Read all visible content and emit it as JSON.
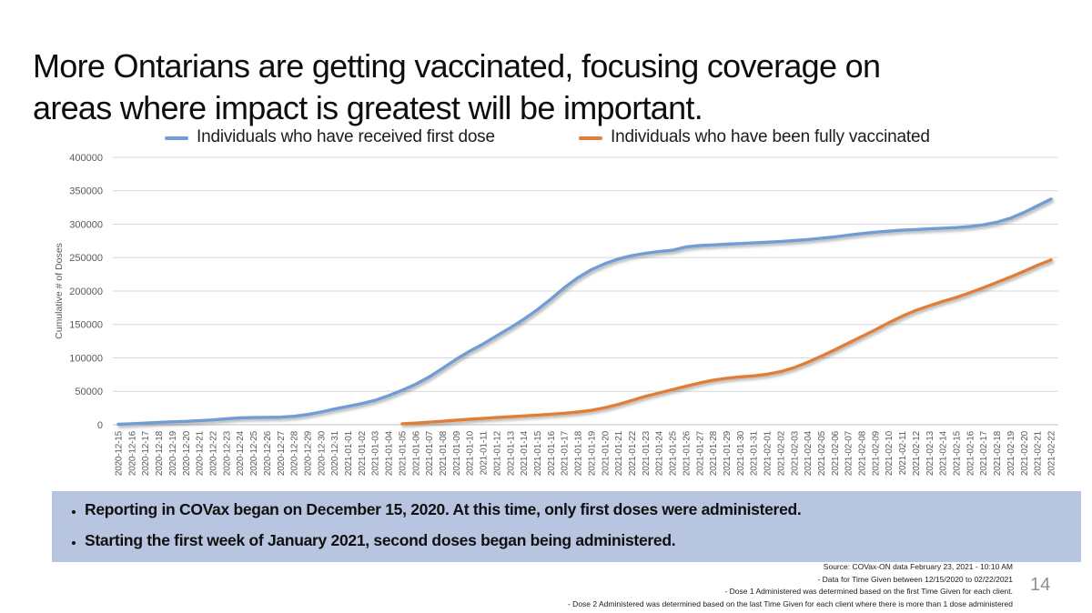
{
  "slide": {
    "title_line1": "More Ontarians are getting vaccinated, focusing coverage on",
    "title_line2": "areas where impact is greatest will be important.",
    "page_number": "14"
  },
  "legend": [
    {
      "label": "Individuals who have received first dose",
      "color": "#719cd4"
    },
    {
      "label": "Individuals who have been fully vaccinated",
      "color": "#e07e39"
    }
  ],
  "notes": [
    "Reporting in COVax began on December 15, 2020. At this time, only first doses were administered.",
    "Starting the first week of January 2021, second doses began being administered."
  ],
  "source_lines": [
    "Source: COVax-ON data February 23, 2021 - 10:10 AM",
    "- Data for Time Given between 12/15/2020 to 02/22/2021",
    "- Dose 1 Administered was determined based on the first Time Given for each client.",
    "- Dose 2 Administered was determined based on the last Time Given for each client where there is more than 1 dose administered"
  ],
  "chart_data": {
    "type": "line",
    "title": "",
    "xlabel": "",
    "ylabel": "Cumulative # of Doses",
    "ylim": [
      0,
      400000
    ],
    "ytick_interval": 50000,
    "grid": true,
    "legend_position": "top",
    "axis_text_color": "#595959",
    "gridline_color": "#d9d9d9",
    "axis_line_color": "#c2c2c2",
    "categories": [
      "2020-12-15",
      "2020-12-16",
      "2020-12-17",
      "2020-12-18",
      "2020-12-19",
      "2020-12-20",
      "2020-12-21",
      "2020-12-22",
      "2020-12-23",
      "2020-12-24",
      "2020-12-25",
      "2020-12-26",
      "2020-12-27",
      "2020-12-28",
      "2020-12-29",
      "2020-12-30",
      "2020-12-31",
      "2021-01-01",
      "2021-01-02",
      "2021-01-03",
      "2021-01-04",
      "2021-01-05",
      "2021-01-06",
      "2021-01-07",
      "2021-01-08",
      "2021-01-09",
      "2021-01-10",
      "2021-01-11",
      "2021-01-12",
      "2021-01-13",
      "2021-01-14",
      "2021-01-15",
      "2021-01-16",
      "2021-01-17",
      "2021-01-18",
      "2021-01-19",
      "2021-01-20",
      "2021-01-21",
      "2021-01-22",
      "2021-01-23",
      "2021-01-24",
      "2021-01-25",
      "2021-01-26",
      "2021-01-27",
      "2021-01-28",
      "2021-01-29",
      "2021-01-30",
      "2021-01-31",
      "2021-02-01",
      "2021-02-02",
      "2021-02-03",
      "2021-02-04",
      "2021-02-05",
      "2021-02-06",
      "2021-02-07",
      "2021-02-08",
      "2021-02-09",
      "2021-02-10",
      "2021-02-11",
      "2021-02-12",
      "2021-02-13",
      "2021-02-14",
      "2021-02-15",
      "2021-02-16",
      "2021-02-17",
      "2021-02-18",
      "2021-02-19",
      "2021-02-20",
      "2021-02-21",
      "2021-02-22"
    ],
    "series": [
      {
        "name": "Individuals who have received first dose",
        "color": "#719cd4",
        "values": [
          700,
          1500,
          2500,
          3500,
          4300,
          5100,
          6000,
          7200,
          8800,
          10200,
          10800,
          11000,
          11300,
          12600,
          15200,
          19000,
          23500,
          27500,
          31500,
          36500,
          43500,
          51500,
          60500,
          71500,
          84500,
          98000,
          110000,
          121000,
          133000,
          145000,
          158000,
          172000,
          188000,
          205000,
          220000,
          232000,
          241000,
          248000,
          253000,
          256500,
          259000,
          261000,
          266000,
          268000,
          269000,
          270000,
          271000,
          272000,
          273000,
          274000,
          275500,
          277000,
          279000,
          281000,
          283500,
          286000,
          288000,
          289500,
          291000,
          292000,
          293000,
          294000,
          295000,
          296500,
          299000,
          303000,
          309000,
          317500,
          327500,
          337500
        ]
      },
      {
        "name": "Individuals who have been fully vaccinated",
        "color": "#e07e39",
        "values": [
          null,
          null,
          null,
          null,
          null,
          null,
          null,
          null,
          null,
          null,
          null,
          null,
          null,
          null,
          null,
          null,
          null,
          null,
          null,
          null,
          null,
          1500,
          2500,
          3800,
          5200,
          6800,
          8200,
          9400,
          10700,
          12000,
          13200,
          14400,
          15800,
          17200,
          19000,
          21500,
          25500,
          30500,
          36500,
          42500,
          47500,
          52500,
          57500,
          62500,
          66500,
          69500,
          71500,
          73000,
          75500,
          79500,
          85500,
          93500,
          102500,
          112000,
          122000,
          132000,
          142000,
          152500,
          162500,
          171000,
          178000,
          184500,
          190500,
          197500,
          205000,
          213000,
          221000,
          229500,
          238500,
          246500
        ]
      }
    ]
  }
}
